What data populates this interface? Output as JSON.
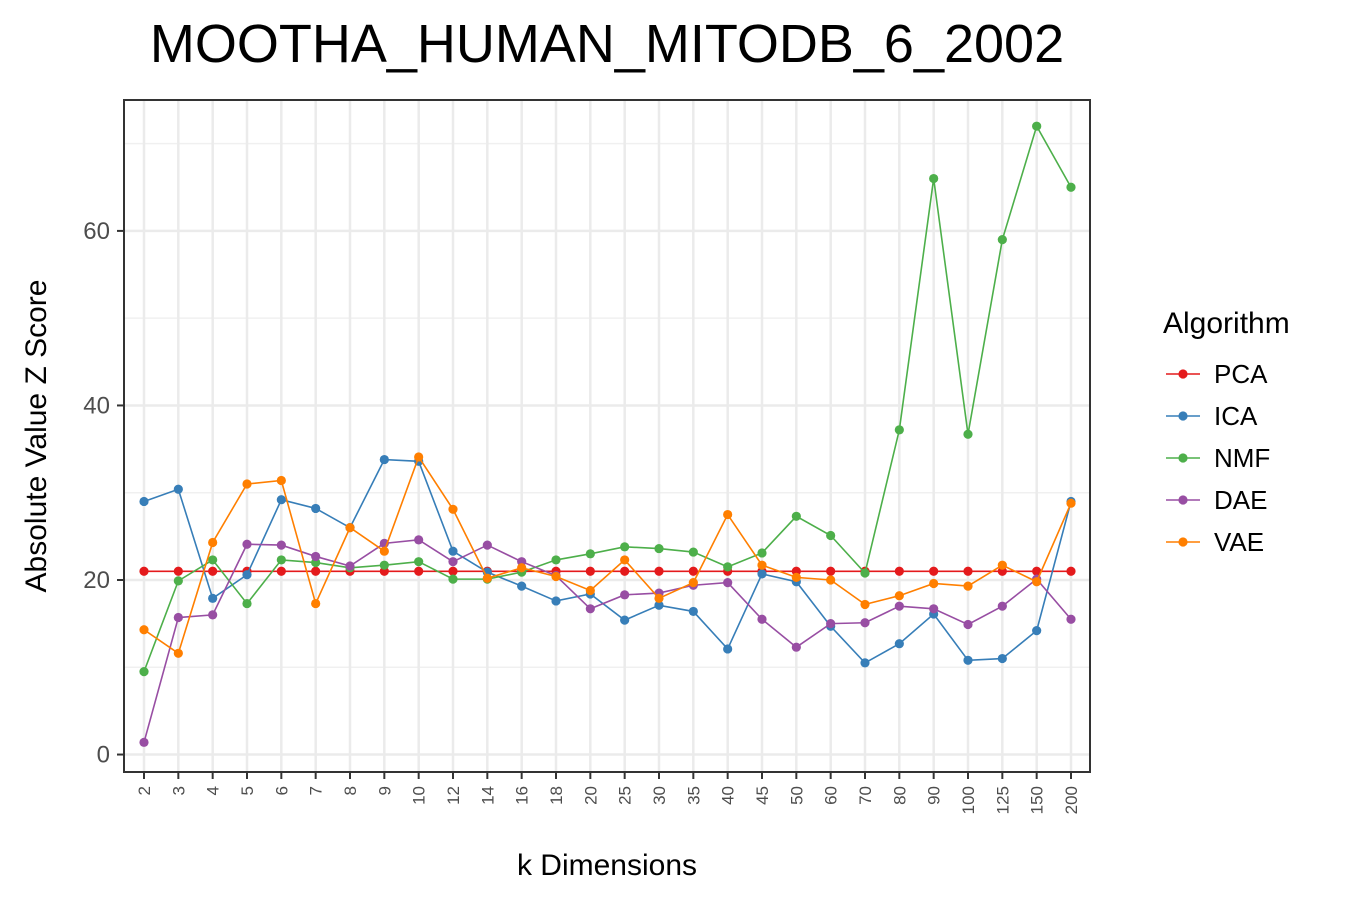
{
  "chart_data": {
    "type": "line",
    "title": "MOOTHA_HUMAN_MITODB_6_2002",
    "xlabel": "k Dimensions",
    "ylabel": "Absolute Value Z Score",
    "categories": [
      "2",
      "3",
      "4",
      "5",
      "6",
      "7",
      "8",
      "9",
      "10",
      "12",
      "14",
      "16",
      "18",
      "20",
      "25",
      "30",
      "35",
      "40",
      "45",
      "50",
      "60",
      "70",
      "80",
      "90",
      "100",
      "125",
      "150",
      "200"
    ],
    "yticks": [
      0,
      20,
      40,
      60
    ],
    "ylim": [
      -2,
      75
    ],
    "grid": true,
    "legend": {
      "title": "Algorithm",
      "position": "right"
    },
    "series": [
      {
        "name": "PCA",
        "color": "#e41a1c",
        "values": [
          21,
          21,
          21,
          21,
          21,
          21,
          21,
          21,
          21,
          21,
          21,
          21,
          21,
          21,
          21,
          21,
          21,
          21,
          21,
          21,
          21,
          21,
          21,
          21,
          21,
          21,
          21,
          21
        ]
      },
      {
        "name": "ICA",
        "color": "#377eb8",
        "values": [
          29,
          30.4,
          17.9,
          20.6,
          29.2,
          28.2,
          26,
          33.8,
          33.6,
          23.3,
          20.9,
          19.3,
          17.6,
          18.4,
          15.4,
          17.1,
          16.4,
          12.1,
          20.7,
          19.8,
          14.7,
          10.5,
          12.7,
          16.1,
          10.8,
          11,
          14.2,
          29
        ]
      },
      {
        "name": "NMF",
        "color": "#4daf4a",
        "values": [
          9.5,
          19.9,
          22.3,
          17.3,
          22.3,
          22,
          21.4,
          21.7,
          22.1,
          20.1,
          20.1,
          20.9,
          22.3,
          23,
          23.8,
          23.6,
          23.2,
          21.5,
          23.1,
          27.3,
          25.1,
          20.8,
          37.2,
          66,
          36.7,
          59,
          72,
          65
        ]
      },
      {
        "name": "DAE",
        "color": "#984ea3",
        "values": [
          1.4,
          15.7,
          16,
          24.1,
          24,
          22.7,
          21.6,
          24.2,
          24.6,
          22.1,
          24,
          22.1,
          20.5,
          16.7,
          18.3,
          18.5,
          19.4,
          19.7,
          15.5,
          12.3,
          15,
          15.1,
          17,
          16.7,
          14.9,
          17,
          20.1,
          15.5
        ]
      },
      {
        "name": "VAE",
        "color": "#ff7f00",
        "values": [
          14.3,
          11.6,
          24.3,
          31,
          31.4,
          17.3,
          26,
          23.3,
          34.1,
          28.1,
          20.2,
          21.4,
          20.4,
          18.8,
          22.3,
          17.9,
          19.7,
          27.5,
          21.7,
          20.3,
          20,
          17.2,
          18.2,
          19.6,
          19.3,
          21.7,
          19.8,
          28.8
        ]
      }
    ]
  }
}
